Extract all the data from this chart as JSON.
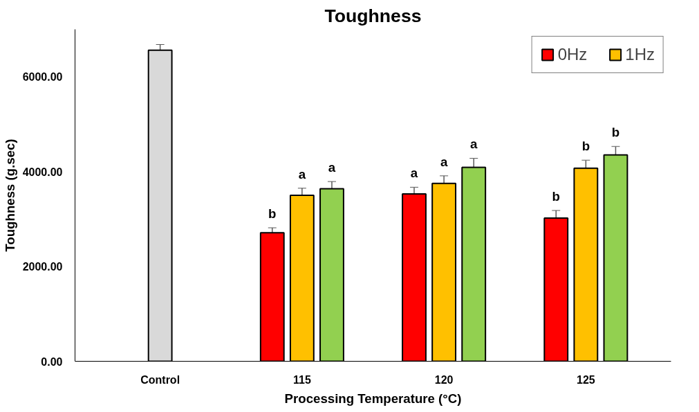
{
  "chart_data": {
    "type": "bar",
    "title": "Toughness",
    "xlabel": "Processing Temperature (°C)",
    "ylabel": "Toughness (g.sec)",
    "categories": [
      "Control",
      "115",
      "120",
      "125"
    ],
    "series": [
      {
        "color": "#d9d9d9",
        "values": [
          6560,
          null,
          null,
          null
        ],
        "errors": [
          120,
          null,
          null,
          null
        ]
      },
      {
        "name": "0Hz",
        "color": "#ff0000",
        "values": [
          null,
          2710,
          3530,
          3020
        ],
        "errors": [
          null,
          105,
          140,
          160
        ],
        "value_labels": [
          null,
          "b",
          "a",
          "b"
        ]
      },
      {
        "name": "1Hz",
        "color": "#ffc000",
        "values": [
          null,
          3500,
          3750,
          4070
        ],
        "errors": [
          null,
          150,
          160,
          170
        ],
        "value_labels": [
          null,
          "a",
          "a",
          "b"
        ]
      },
      {
        "color": "#92d050",
        "values": [
          null,
          3640,
          4090,
          4350
        ],
        "errors": [
          null,
          150,
          190,
          180
        ],
        "value_labels": [
          null,
          "a",
          "a",
          "b"
        ]
      }
    ],
    "ylim": [
      0,
      7000
    ],
    "yticks": [
      {
        "value": 0,
        "label": "0.00"
      },
      {
        "value": 2000,
        "label": "2000.00"
      },
      {
        "value": 4000,
        "label": "4000.00"
      },
      {
        "value": 6000,
        "label": "6000.00"
      }
    ],
    "grid": false,
    "legend": "top right"
  }
}
